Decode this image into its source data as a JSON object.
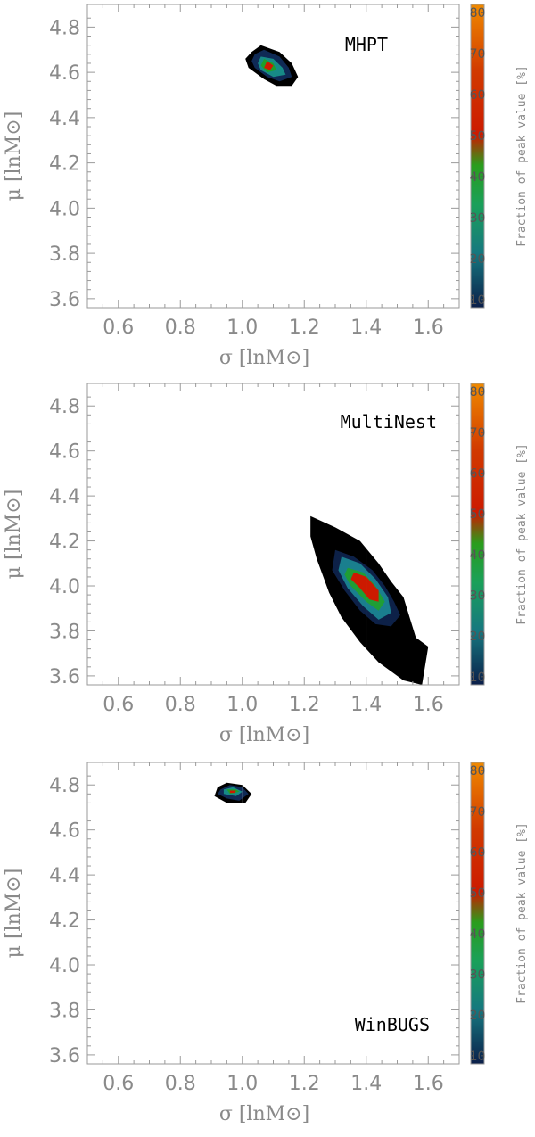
{
  "chart_data": [
    {
      "type": "contour",
      "panel_label": "MHPT",
      "xlabel": "σ [lnM⊙]",
      "ylabel": "μ [lnM⊙]",
      "xlim": [
        0.5,
        1.7
      ],
      "ylim": [
        3.56,
        4.9
      ],
      "x_ticks": [
        0.6,
        0.8,
        1.0,
        1.2,
        1.4,
        1.6
      ],
      "y_ticks": [
        3.6,
        3.8,
        4.0,
        4.2,
        4.4,
        4.6,
        4.8
      ],
      "peak": [
        1.08,
        4.63
      ],
      "colorbar": {
        "label": "Fraction of peak value [%]",
        "ticks": [
          10,
          20,
          30,
          40,
          50,
          60,
          70,
          80
        ]
      },
      "contours": [
        {
          "level": 10,
          "color": "#000000",
          "points": [
            [
              1.03,
              4.69
            ],
            [
              1.06,
              4.72
            ],
            [
              1.12,
              4.69
            ],
            [
              1.16,
              4.64
            ],
            [
              1.18,
              4.58
            ],
            [
              1.16,
              4.54
            ],
            [
              1.11,
              4.54
            ],
            [
              1.07,
              4.57
            ],
            [
              1.02,
              4.62
            ],
            [
              1.01,
              4.66
            ]
          ]
        },
        {
          "level": 20,
          "color": "#0f2a55",
          "points": [
            [
              1.04,
              4.68
            ],
            [
              1.07,
              4.7
            ],
            [
              1.12,
              4.67
            ],
            [
              1.15,
              4.62
            ],
            [
              1.16,
              4.58
            ],
            [
              1.12,
              4.56
            ],
            [
              1.08,
              4.58
            ],
            [
              1.04,
              4.62
            ],
            [
              1.03,
              4.65
            ]
          ]
        },
        {
          "level": 30,
          "color": "#178a86",
          "points": [
            [
              1.06,
              4.67
            ],
            [
              1.1,
              4.66
            ],
            [
              1.13,
              4.62
            ],
            [
              1.14,
              4.59
            ],
            [
              1.1,
              4.58
            ],
            [
              1.06,
              4.61
            ],
            [
              1.05,
              4.64
            ]
          ]
        },
        {
          "level": 40,
          "color": "#1e9f2a",
          "points": [
            [
              1.07,
              4.66
            ],
            [
              1.1,
              4.64
            ],
            [
              1.11,
              4.61
            ],
            [
              1.08,
              4.6
            ],
            [
              1.06,
              4.63
            ]
          ]
        },
        {
          "level": 60,
          "color": "#cc1a00",
          "points": [
            [
              1.08,
              4.65
            ],
            [
              1.1,
              4.63
            ],
            [
              1.09,
              4.61
            ],
            [
              1.07,
              4.62
            ]
          ]
        }
      ]
    },
    {
      "type": "contour",
      "panel_label": "MultiNest",
      "xlabel": "σ [lnM⊙]",
      "ylabel": "μ [lnM⊙]",
      "xlim": [
        0.5,
        1.7
      ],
      "ylim": [
        3.56,
        4.9
      ],
      "x_ticks": [
        0.6,
        0.8,
        1.0,
        1.2,
        1.4,
        1.6
      ],
      "y_ticks": [
        3.6,
        3.8,
        4.0,
        4.2,
        4.4,
        4.6,
        4.8
      ],
      "peak": [
        1.4,
        4.0
      ],
      "colorbar": {
        "label": "Fraction of peak value [%]",
        "ticks": [
          10,
          20,
          30,
          40,
          50,
          60,
          70,
          80
        ]
      },
      "contours": [
        {
          "level": 5,
          "color": "#000000",
          "points": [
            [
              1.22,
              4.31
            ],
            [
              1.3,
              4.26
            ],
            [
              1.38,
              4.2
            ],
            [
              1.44,
              4.1
            ],
            [
              1.48,
              4.02
            ],
            [
              1.52,
              3.95
            ],
            [
              1.54,
              3.86
            ],
            [
              1.56,
              3.77
            ],
            [
              1.6,
              3.73
            ],
            [
              1.58,
              3.56
            ],
            [
              1.52,
              3.58
            ],
            [
              1.44,
              3.66
            ],
            [
              1.38,
              3.75
            ],
            [
              1.32,
              3.86
            ],
            [
              1.28,
              3.97
            ],
            [
              1.24,
              4.12
            ],
            [
              1.22,
              4.22
            ]
          ]
        },
        {
          "level": 10,
          "color": "#0d2148",
          "points": [
            [
              1.3,
              4.16
            ],
            [
              1.36,
              4.13
            ],
            [
              1.42,
              4.07
            ],
            [
              1.46,
              4.0
            ],
            [
              1.49,
              3.93
            ],
            [
              1.51,
              3.87
            ],
            [
              1.48,
              3.82
            ],
            [
              1.43,
              3.83
            ],
            [
              1.38,
              3.89
            ],
            [
              1.33,
              3.98
            ],
            [
              1.29,
              4.07
            ]
          ]
        },
        {
          "level": 20,
          "color": "#1a7f8e",
          "points": [
            [
              1.32,
              4.13
            ],
            [
              1.38,
              4.1
            ],
            [
              1.43,
              4.03
            ],
            [
              1.47,
              3.95
            ],
            [
              1.48,
              3.88
            ],
            [
              1.44,
              3.85
            ],
            [
              1.39,
              3.91
            ],
            [
              1.34,
              3.99
            ],
            [
              1.31,
              4.07
            ]
          ]
        },
        {
          "level": 30,
          "color": "#1f9e35",
          "points": [
            [
              1.34,
              4.08
            ],
            [
              1.39,
              4.06
            ],
            [
              1.43,
              4.0
            ],
            [
              1.46,
              3.93
            ],
            [
              1.44,
              3.89
            ],
            [
              1.4,
              3.93
            ],
            [
              1.35,
              4.0
            ],
            [
              1.33,
              4.05
            ]
          ]
        },
        {
          "level": 50,
          "color": "#cc1a00",
          "points": [
            [
              1.36,
              4.06
            ],
            [
              1.4,
              4.04
            ],
            [
              1.44,
              3.98
            ],
            [
              1.44,
              3.93
            ],
            [
              1.41,
              3.94
            ],
            [
              1.38,
              3.99
            ],
            [
              1.35,
              4.03
            ]
          ]
        }
      ]
    },
    {
      "type": "contour",
      "panel_label": "WinBUGS",
      "xlabel": "σ [lnM⊙]",
      "ylabel": "μ [lnM⊙]",
      "xlim": [
        0.5,
        1.7
      ],
      "ylim": [
        3.56,
        4.9
      ],
      "x_ticks": [
        0.6,
        0.8,
        1.0,
        1.2,
        1.4,
        1.6
      ],
      "y_ticks": [
        3.6,
        3.8,
        4.0,
        4.2,
        4.4,
        4.6,
        4.8
      ],
      "peak": [
        0.97,
        4.77
      ],
      "colorbar": {
        "label": "Fraction of peak value [%]",
        "ticks": [
          10,
          20,
          30,
          40,
          50,
          60,
          70,
          80
        ]
      },
      "contours": [
        {
          "level": 10,
          "color": "#000000",
          "points": [
            [
              0.92,
              4.79
            ],
            [
              0.95,
              4.81
            ],
            [
              1.0,
              4.8
            ],
            [
              1.03,
              4.76
            ],
            [
              1.01,
              4.72
            ],
            [
              0.95,
              4.72
            ],
            [
              0.91,
              4.75
            ]
          ]
        },
        {
          "level": 20,
          "color": "#0f2a55",
          "points": [
            [
              0.93,
              4.78
            ],
            [
              0.96,
              4.8
            ],
            [
              1.0,
              4.79
            ],
            [
              1.02,
              4.76
            ],
            [
              0.99,
              4.73
            ],
            [
              0.95,
              4.74
            ],
            [
              0.92,
              4.76
            ]
          ]
        },
        {
          "level": 30,
          "color": "#178a86",
          "points": [
            [
              0.94,
              4.78
            ],
            [
              0.97,
              4.79
            ],
            [
              1.0,
              4.77
            ],
            [
              0.98,
              4.75
            ],
            [
              0.94,
              4.76
            ]
          ]
        },
        {
          "level": 40,
          "color": "#1e9f2a",
          "points": [
            [
              0.95,
              4.78
            ],
            [
              0.98,
              4.78
            ],
            [
              0.99,
              4.77
            ],
            [
              0.96,
              4.76
            ]
          ]
        },
        {
          "level": 60,
          "color": "#cc1a00",
          "points": [
            [
              0.96,
              4.775
            ],
            [
              0.98,
              4.775
            ],
            [
              0.975,
              4.765
            ],
            [
              0.96,
              4.765
            ]
          ]
        }
      ]
    }
  ]
}
